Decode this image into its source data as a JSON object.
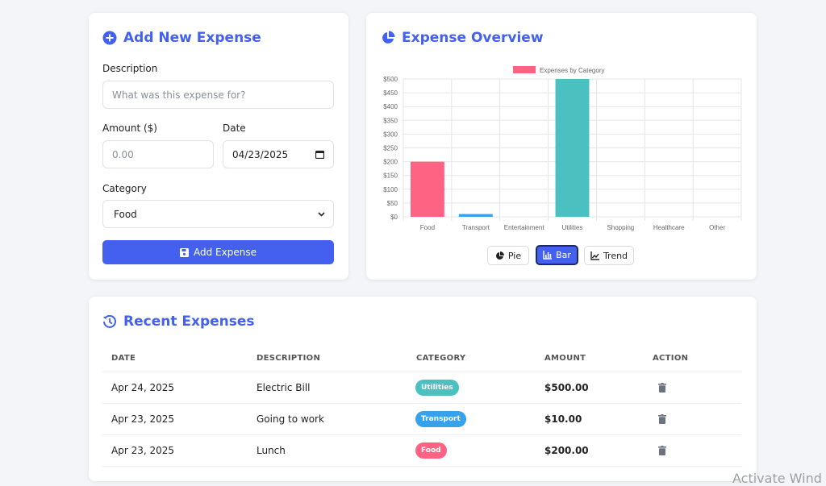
{
  "form": {
    "title": "Add New Expense",
    "description_label": "Description",
    "description_placeholder": "What was this expense for?",
    "amount_label": "Amount ($)",
    "amount_placeholder": "0.00",
    "date_label": "Date",
    "date_value": "04/23/2025",
    "category_label": "Category",
    "category_value": "Food",
    "submit_label": "Add Expense"
  },
  "overview": {
    "title": "Expense Overview",
    "buttons": [
      {
        "label": "Pie",
        "icon": "pie-icon",
        "active": false
      },
      {
        "label": "Bar",
        "icon": "bar-chart-icon",
        "active": true
      },
      {
        "label": "Trend",
        "icon": "trend-icon",
        "active": false
      }
    ]
  },
  "chart_data": {
    "type": "bar",
    "categories": [
      "Food",
      "Transport",
      "Entertainment",
      "Utilities",
      "Shopping",
      "Healthcare",
      "Other"
    ],
    "series": [
      {
        "name": "Expenses by Category",
        "values": [
          200,
          10,
          0,
          500,
          0,
          0,
          0
        ]
      }
    ],
    "colors": [
      "#ff6384",
      "#36a2eb",
      "#ffce56",
      "#4bc0c0",
      "#9966ff",
      "#ff9f40",
      "#c9cbcf"
    ],
    "ylim": [
      0,
      500
    ],
    "y_ticks": [
      "$0",
      "$50",
      "$100",
      "$150",
      "$200",
      "$250",
      "$300",
      "$350",
      "$400",
      "$450",
      "$500"
    ],
    "legend": "top",
    "grid": true
  },
  "recent": {
    "title": "Recent Expenses",
    "columns": [
      "DATE",
      "DESCRIPTION",
      "CATEGORY",
      "AMOUNT",
      "ACTION"
    ],
    "rows": [
      {
        "date": "Apr 24, 2025",
        "description": "Electric Bill",
        "category": "Utilities",
        "category_color": "#4bc0c0",
        "amount": "$500.00"
      },
      {
        "date": "Apr 23, 2025",
        "description": "Going to work",
        "category": "Transport",
        "category_color": "#36a2eb",
        "amount": "$10.00"
      },
      {
        "date": "Apr 23, 2025",
        "description": "Lunch",
        "category": "Food",
        "category_color": "#ff6384",
        "amount": "$200.00"
      }
    ]
  },
  "watermark": "Activate Wind"
}
